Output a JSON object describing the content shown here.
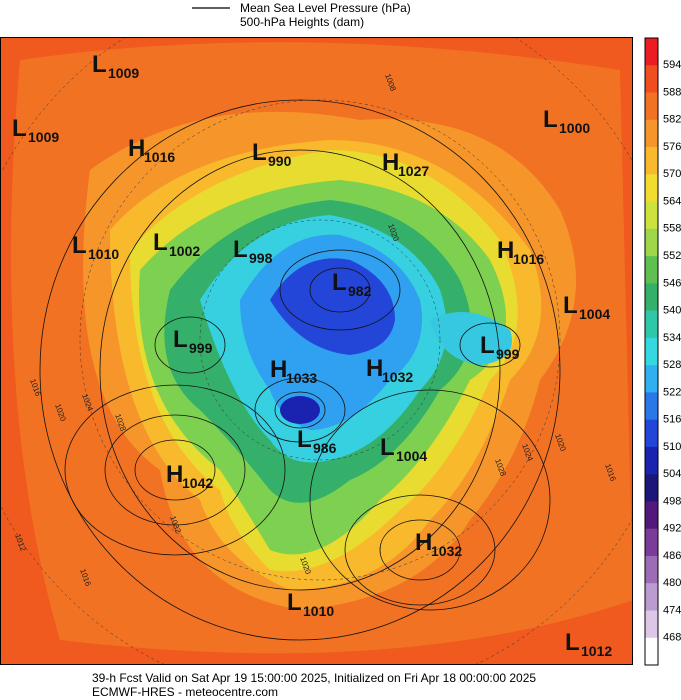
{
  "legend": {
    "line1": "Mean Sea Level Pressure (hPa)",
    "line2": "500-hPa Heights (dam)"
  },
  "colorbar": {
    "labels": [
      594,
      588,
      582,
      576,
      570,
      564,
      558,
      552,
      546,
      540,
      534,
      528,
      522,
      516,
      510,
      504,
      498,
      492,
      486,
      480,
      474,
      468
    ],
    "colors": [
      "#ec1c24",
      "#f04e1e",
      "#f27224",
      "#f6962a",
      "#f9b92c",
      "#f2dc30",
      "#cde23c",
      "#9ed84a",
      "#5ec050",
      "#34b06a",
      "#2ec8a8",
      "#36d8e0",
      "#30b0f0",
      "#2a78e8",
      "#2446d8",
      "#1a22b0",
      "#1c1678",
      "#54187a",
      "#7a3c98",
      "#9c6cb6",
      "#bc9cd0",
      "#dcc8e6",
      "#ffffff"
    ]
  },
  "centers": [
    {
      "type": "L",
      "value": "1009"
    },
    {
      "type": "L",
      "value": "1009"
    },
    {
      "type": "H",
      "value": "1016"
    },
    {
      "type": "L",
      "value": "990"
    },
    {
      "type": "H",
      "value": "1027"
    },
    {
      "type": "L",
      "value": "1000"
    },
    {
      "type": "L",
      "value": "1010"
    },
    {
      "type": "L",
      "value": "1002"
    },
    {
      "type": "L",
      "value": "998"
    },
    {
      "type": "L",
      "value": "982"
    },
    {
      "type": "H",
      "value": "1016"
    },
    {
      "type": "L",
      "value": "1004"
    },
    {
      "type": "L",
      "value": "999"
    },
    {
      "type": "H",
      "value": "1033"
    },
    {
      "type": "H",
      "value": "1032"
    },
    {
      "type": "L",
      "value": "999"
    },
    {
      "type": "L",
      "value": "986"
    },
    {
      "type": "L",
      "value": "1004"
    },
    {
      "type": "H",
      "value": "1042"
    },
    {
      "type": "H",
      "value": "1032"
    },
    {
      "type": "L",
      "value": "1010"
    },
    {
      "type": "L",
      "value": "1012"
    }
  ],
  "isobar_labels": [
    "1016",
    "1020",
    "1024",
    "1028",
    "1032",
    "1012",
    "1016",
    "1020",
    "1024",
    "1028",
    "1016",
    "1020",
    "1008",
    "1020"
  ],
  "footer": {
    "line1": "39-h Fcst Valid on Sat Apr 19 15:00:00 2025, Initialized on Fri Apr 18 00:00:00 2025",
    "line2": "ECMWF-HRES  - meteocentre.com"
  }
}
